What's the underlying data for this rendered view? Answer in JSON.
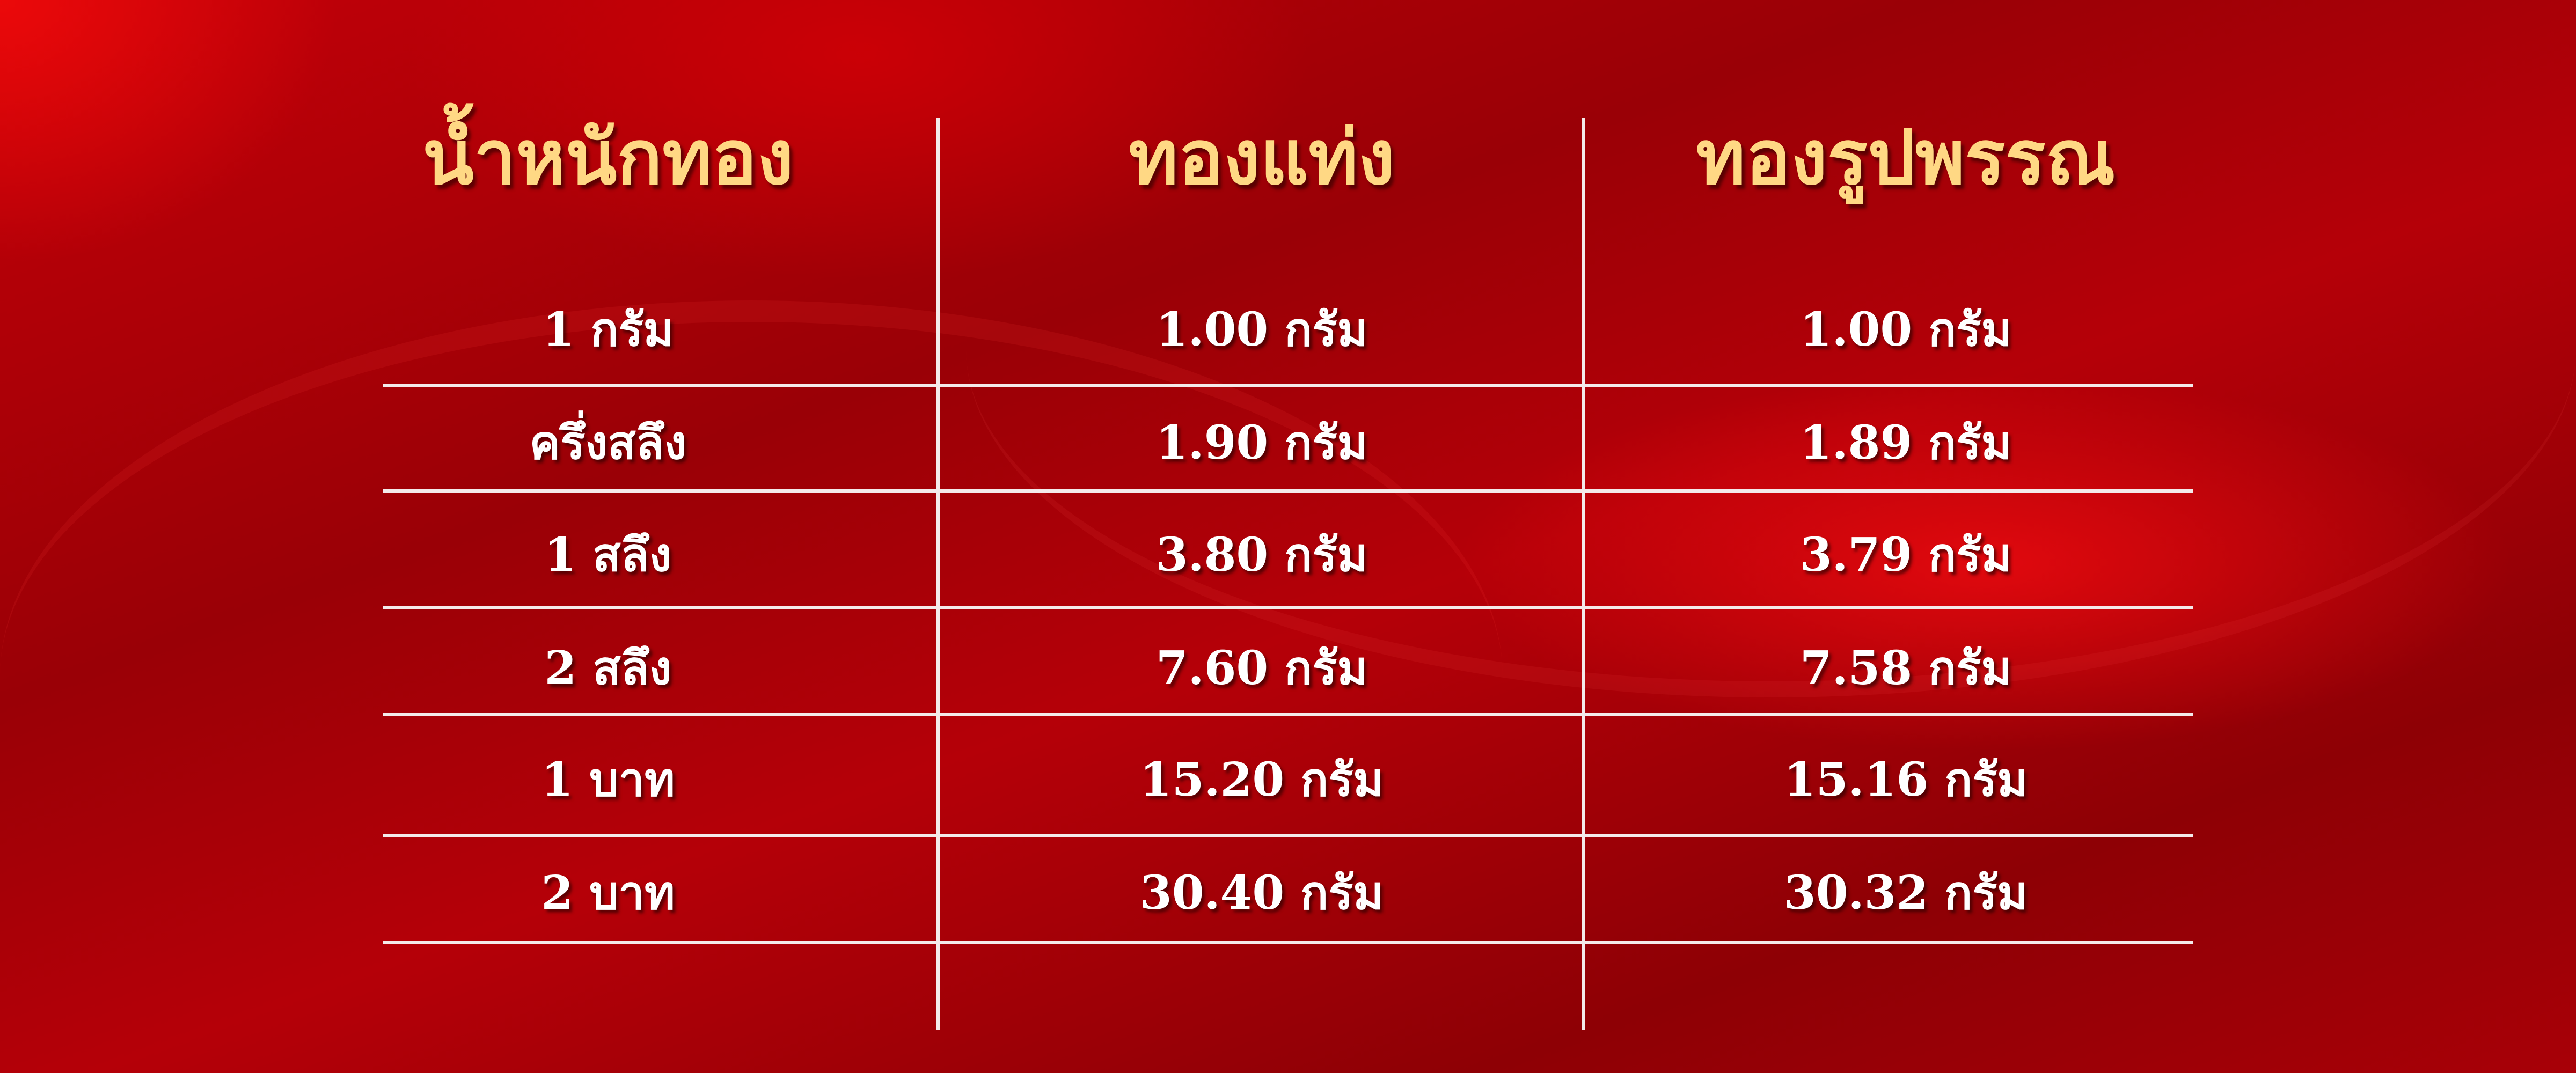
{
  "table": {
    "headers": [
      "น้ำหนักทอง",
      "ทองแท่ง",
      "ทองรูปพรรณ"
    ],
    "rows": [
      [
        "1 กรัม",
        "1.00 กรัม",
        "1.00 กรัม"
      ],
      [
        "ครึ่งสลึง",
        "1.90 กรัม",
        "1.89 กรัม"
      ],
      [
        "1 สลึง",
        "3.80 กรัม",
        "3.79 กรัม"
      ],
      [
        "2 สลึง",
        "7.60 กรัม",
        "7.58 กรัม"
      ],
      [
        "1 บาท",
        "15.20 กรัม",
        "15.16 กรัม"
      ],
      [
        "2 บาท",
        "30.40 กรัม",
        "30.32 กรัม"
      ]
    ]
  },
  "colors": {
    "background": "#a80007",
    "header_text": "#ffd884",
    "body_text": "#ffffff",
    "lines": "#f4eaea"
  }
}
